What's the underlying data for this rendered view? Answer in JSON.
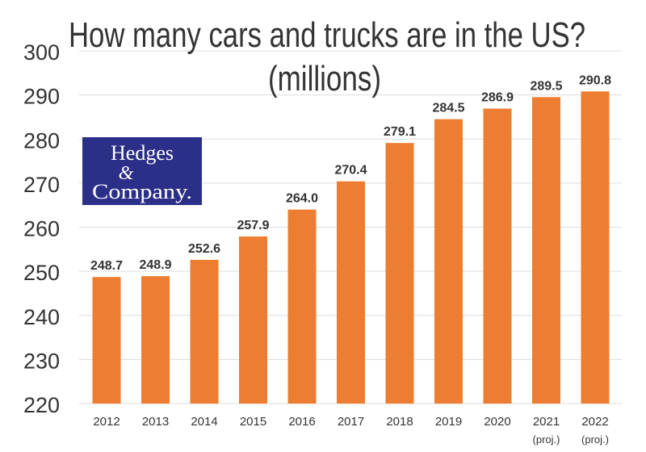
{
  "colors": {
    "bar": "#ed7d31",
    "grid": "#dcdcdc",
    "text": "#333333",
    "logo_bg": "#2b2f87"
  },
  "logo": {
    "line1": "Hedges",
    "line2": "&",
    "line3": "Company."
  },
  "chart_data": {
    "type": "bar",
    "title": "How many cars and trucks are in the US?",
    "subtitle": "(millions)",
    "xlabel": "",
    "ylabel": "",
    "ylim": [
      220,
      300
    ],
    "yticks": [
      220,
      230,
      240,
      250,
      260,
      270,
      280,
      290,
      300
    ],
    "grid": true,
    "categories": [
      "2012",
      "2013",
      "2014",
      "2015",
      "2016",
      "2017",
      "2018",
      "2019",
      "2020",
      "2021",
      "2022"
    ],
    "category_notes": [
      "",
      "",
      "",
      "",
      "",
      "",
      "",
      "",
      "",
      "(proj.)",
      "(proj.)"
    ],
    "values": [
      248.7,
      248.9,
      252.6,
      257.9,
      264.0,
      270.4,
      279.1,
      284.5,
      286.9,
      289.5,
      290.8
    ],
    "value_labels": [
      "248.7",
      "248.9",
      "252.6",
      "257.9",
      "264.0",
      "270.4",
      "279.1",
      "284.5",
      "286.9",
      "289.5",
      "290.8"
    ]
  }
}
